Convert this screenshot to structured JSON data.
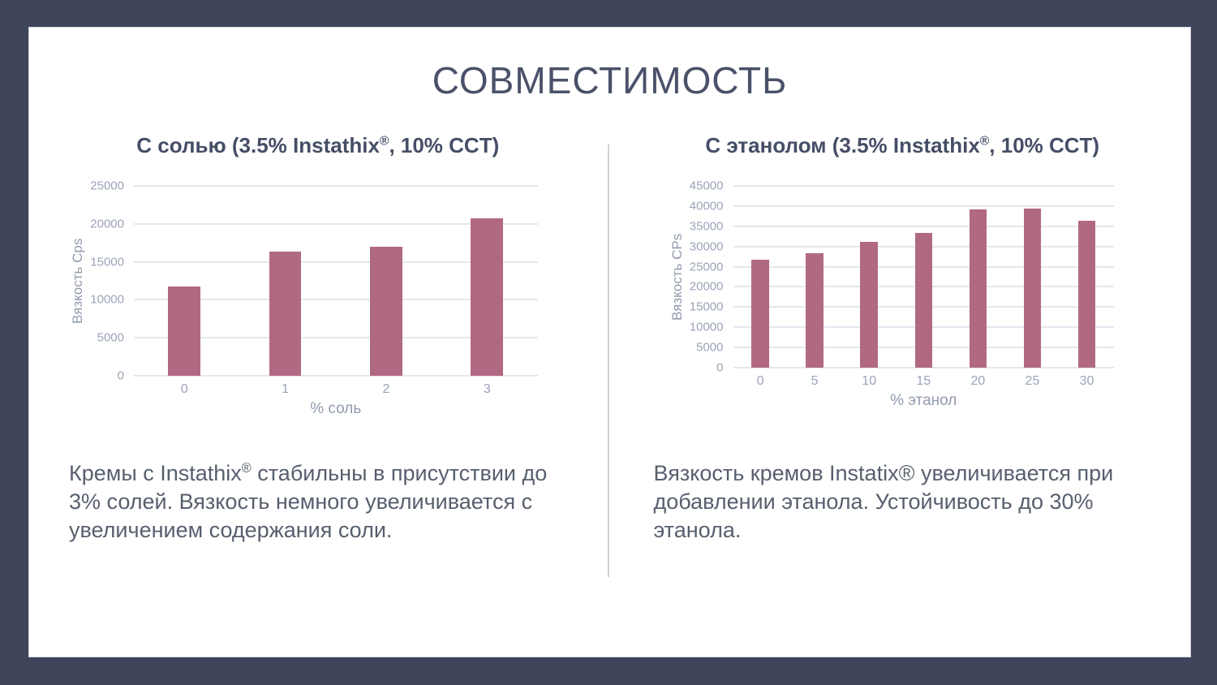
{
  "slide": {
    "title": "СОВМЕСТИМОСТЬ"
  },
  "panels": {
    "left": {
      "title_pre": "С солью (3.5% Instathix",
      "title_sup": "®",
      "title_post": ", 10% CCT)",
      "text_pre": "Кремы с Instathix",
      "text_sup": "®",
      "text_post": " стабильны в присутствии до 3% солей. Вязкость немного увеличивается с увеличением содержания соли."
    },
    "right": {
      "title_pre": "С этанолом (3.5% Instathix",
      "title_sup": "®",
      "title_post": ", 10% CCT)",
      "text": "Вязкость кремов Instatix® увеличивается при добавлении этанола. Устойчивость до 30% этанола."
    }
  },
  "colors": {
    "frame": "#3e4459",
    "bar": "#b16983",
    "gridline": "#e4e7ef",
    "divider": "#ccd1d9"
  },
  "chart_data": [
    {
      "type": "bar",
      "title": "С солью (3.5% Instathix®, 10% CCT)",
      "categories": [
        "0",
        "1",
        "2",
        "3"
      ],
      "values": [
        11800,
        16400,
        17000,
        20700
      ],
      "xlabel": "% соль",
      "ylabel": "Вязкость Cps",
      "ylim": [
        0,
        25000
      ],
      "ytick_step": 5000,
      "grid": true,
      "legend": "none",
      "bar_color": "#b16983"
    },
    {
      "type": "bar",
      "title": "С этанолом (3.5% Instathix®, 10% CCT)",
      "categories": [
        "0",
        "5",
        "10",
        "15",
        "20",
        "25",
        "30"
      ],
      "values": [
        26800,
        28300,
        31100,
        33300,
        39200,
        39300,
        36300
      ],
      "xlabel": "% этанол",
      "ylabel": "Вязкость CPs",
      "ylim": [
        0,
        45000
      ],
      "ytick_step": 5000,
      "grid": true,
      "legend": "none",
      "bar_color": "#b16983"
    }
  ]
}
